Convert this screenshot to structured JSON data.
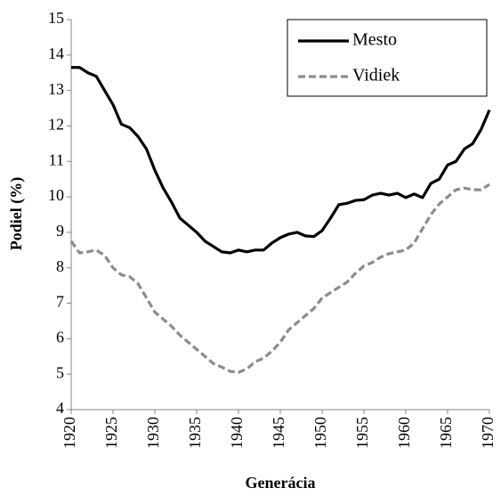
{
  "chart_data": {
    "type": "line",
    "xlabel": "Generácia",
    "ylabel": "Podiel (%)",
    "x": [
      1920,
      1921,
      1922,
      1923,
      1924,
      1925,
      1926,
      1927,
      1928,
      1929,
      1930,
      1931,
      1932,
      1933,
      1934,
      1935,
      1936,
      1937,
      1938,
      1939,
      1940,
      1941,
      1942,
      1943,
      1944,
      1945,
      1946,
      1947,
      1948,
      1949,
      1950,
      1951,
      1952,
      1953,
      1954,
      1955,
      1956,
      1957,
      1958,
      1959,
      1960,
      1961,
      1962,
      1963,
      1964,
      1965,
      1966,
      1967,
      1968,
      1969,
      1970
    ],
    "series": [
      {
        "name": "Mesto",
        "color": "#000000",
        "dash": false,
        "values": [
          13.65,
          13.65,
          13.5,
          13.4,
          13.0,
          12.6,
          12.05,
          11.95,
          11.7,
          11.35,
          10.75,
          10.25,
          9.85,
          9.4,
          9.2,
          9.0,
          8.75,
          8.6,
          8.45,
          8.42,
          8.5,
          8.45,
          8.5,
          8.5,
          8.7,
          8.85,
          8.95,
          9.0,
          8.9,
          8.88,
          9.05,
          9.4,
          9.78,
          9.82,
          9.9,
          9.92,
          10.05,
          10.1,
          10.05,
          10.1,
          9.98,
          10.08,
          9.98,
          10.38,
          10.5,
          10.9,
          11.0,
          11.35,
          11.5,
          11.9,
          12.45
        ]
      },
      {
        "name": "Vidiek",
        "color": "#8c8c8c",
        "dash": true,
        "values": [
          8.75,
          8.42,
          8.45,
          8.5,
          8.35,
          8.0,
          7.8,
          7.75,
          7.55,
          7.15,
          6.75,
          6.55,
          6.35,
          6.1,
          5.9,
          5.7,
          5.5,
          5.3,
          5.2,
          5.08,
          5.05,
          5.15,
          5.35,
          5.45,
          5.65,
          5.9,
          6.25,
          6.45,
          6.65,
          6.85,
          7.15,
          7.3,
          7.45,
          7.6,
          7.85,
          8.05,
          8.15,
          8.3,
          8.4,
          8.45,
          8.5,
          8.7,
          9.1,
          9.5,
          9.8,
          10.0,
          10.2,
          10.25,
          10.2,
          10.2,
          10.35
        ]
      }
    ],
    "xlim": [
      1920,
      1970
    ],
    "xticks": [
      1920,
      1925,
      1930,
      1935,
      1940,
      1945,
      1950,
      1955,
      1960,
      1965,
      1970
    ],
    "ylim": [
      4,
      15
    ],
    "yticks": [
      4,
      5,
      6,
      7,
      8,
      9,
      10,
      11,
      12,
      13,
      14,
      15
    ],
    "grid": false,
    "legend": "upper right"
  }
}
